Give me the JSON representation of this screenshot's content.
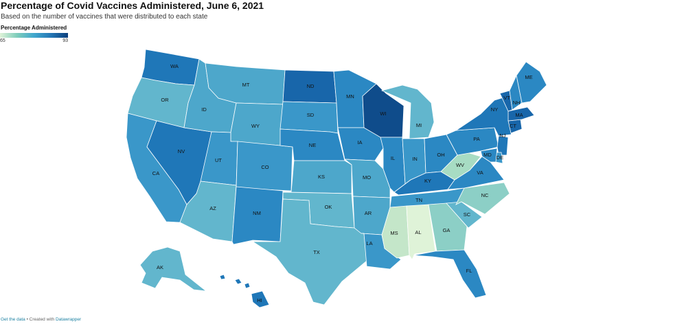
{
  "title": "Percentage of Covid Vaccines Administered, June 6, 2021",
  "subtitle": "Based on the number of vaccines that were distributed to each state",
  "legend": {
    "title": "Percentage Administered",
    "min_label": "65",
    "max_label": "93"
  },
  "colors": {
    "c1": "#dff3d8",
    "c2": "#a7dcc3",
    "c3": "#8ccfc6",
    "c4": "#62b6cd",
    "c5": "#4da7cb",
    "c6": "#3a97c9",
    "c7": "#2b88c3",
    "c8": "#1f77b8",
    "c9": "#1866aa",
    "c10": "#0f4c8b"
  },
  "states": [
    {
      "abbr": "WA",
      "color": "#1f77b8"
    },
    {
      "abbr": "OR",
      "color": "#62b6cd"
    },
    {
      "abbr": "CA",
      "color": "#3a97c9"
    },
    {
      "abbr": "NV",
      "color": "#1f77b8"
    },
    {
      "abbr": "ID",
      "color": "#4da7cb"
    },
    {
      "abbr": "MT",
      "color": "#4da7cb"
    },
    {
      "abbr": "WY",
      "color": "#4da7cb"
    },
    {
      "abbr": "UT",
      "color": "#3a97c9"
    },
    {
      "abbr": "CO",
      "color": "#3a97c9"
    },
    {
      "abbr": "AZ",
      "color": "#62b6cd"
    },
    {
      "abbr": "NM",
      "color": "#2b88c3"
    },
    {
      "abbr": "ND",
      "color": "#1866aa"
    },
    {
      "abbr": "SD",
      "color": "#3a97c9"
    },
    {
      "abbr": "NE",
      "color": "#2b88c3"
    },
    {
      "abbr": "KS",
      "color": "#4da7cb"
    },
    {
      "abbr": "OK",
      "color": "#62b6cd"
    },
    {
      "abbr": "TX",
      "color": "#62b6cd"
    },
    {
      "abbr": "MN",
      "color": "#2b88c3"
    },
    {
      "abbr": "IA",
      "color": "#2b88c3"
    },
    {
      "abbr": "MO",
      "color": "#4da7cb"
    },
    {
      "abbr": "AR",
      "color": "#4da7cb"
    },
    {
      "abbr": "LA",
      "color": "#3a97c9"
    },
    {
      "abbr": "WI",
      "color": "#0f4c8b"
    },
    {
      "abbr": "IL",
      "color": "#2b88c3"
    },
    {
      "abbr": "MI",
      "color": "#62b6cd"
    },
    {
      "abbr": "IN",
      "color": "#3a97c9"
    },
    {
      "abbr": "OH",
      "color": "#2b88c3"
    },
    {
      "abbr": "KY",
      "color": "#1f77b8"
    },
    {
      "abbr": "TN",
      "color": "#3a97c9"
    },
    {
      "abbr": "MS",
      "color": "#c4e6c9"
    },
    {
      "abbr": "AL",
      "color": "#dff3d8"
    },
    {
      "abbr": "GA",
      "color": "#8ccfc6"
    },
    {
      "abbr": "FL",
      "color": "#2b88c3"
    },
    {
      "abbr": "SC",
      "color": "#62b6cd"
    },
    {
      "abbr": "NC",
      "color": "#8ccfc6"
    },
    {
      "abbr": "VA",
      "color": "#2b88c3"
    },
    {
      "abbr": "WV",
      "color": "#a7dcc3"
    },
    {
      "abbr": "PA",
      "color": "#2b88c3"
    },
    {
      "abbr": "NY",
      "color": "#1f77b8"
    },
    {
      "abbr": "VT",
      "color": "#1866aa"
    },
    {
      "abbr": "NH",
      "color": "#2b88c3"
    },
    {
      "abbr": "ME",
      "color": "#2b88c3"
    },
    {
      "abbr": "MA",
      "color": "#1866aa"
    },
    {
      "abbr": "CT",
      "color": "#1866aa"
    },
    {
      "abbr": "NJ",
      "color": "#1f77b8"
    },
    {
      "abbr": "DE",
      "color": "#3a97c9"
    },
    {
      "abbr": "MD",
      "color": "#2b88c3"
    },
    {
      "abbr": "AK",
      "color": "#62b6cd"
    },
    {
      "abbr": "HI",
      "color": "#1f77b8"
    }
  ],
  "footer": {
    "get_data": "Get the data",
    "sep": " • Created with ",
    "tool": "Datawrapper"
  }
}
